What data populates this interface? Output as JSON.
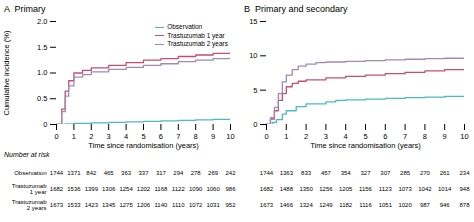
{
  "chart_data": [
    {
      "type": "line",
      "line_style": "step",
      "title": "A  Primary",
      "xlabel": "Time since randomisation (years)",
      "ylabel": "Cumulative incidence (%)",
      "xlim": [
        0,
        10
      ],
      "ylim": [
        0,
        2.0
      ],
      "xticks": [
        0,
        1,
        2,
        3,
        4,
        5,
        6,
        7,
        8,
        9,
        10
      ],
      "yticks": [
        0,
        0.5,
        {
          "value": 1.0,
          "label": "1.0"
        },
        1.5,
        {
          "value": 2.0,
          "label": "2.0"
        }
      ],
      "legend": "upper right",
      "series": [
        {
          "name": "Observation",
          "color": "#4db8c8",
          "x": [
            0,
            0.5,
            1.0,
            2.0,
            3.0,
            4.0,
            5.0,
            6.0,
            7.0,
            8.0,
            9.0,
            10.0
          ],
          "values": [
            0,
            0.01,
            0.02,
            0.03,
            0.04,
            0.05,
            0.06,
            0.07,
            0.08,
            0.09,
            0.1,
            0.11
          ]
        },
        {
          "name": "Trastuzumab 1 year",
          "color": "#c2506e",
          "x": [
            0,
            0.3,
            0.5,
            0.7,
            1.0,
            1.5,
            2.0,
            3.0,
            4.0,
            5.0,
            6.0,
            7.0,
            8.0,
            9.0,
            10.0
          ],
          "values": [
            0,
            0.3,
            0.65,
            0.85,
            1.0,
            1.05,
            1.1,
            1.15,
            1.2,
            1.25,
            1.28,
            1.32,
            1.35,
            1.38,
            1.4
          ]
        },
        {
          "name": "Trastuzumab 2 years",
          "color": "#a08ab4",
          "x": [
            0,
            0.3,
            0.5,
            0.7,
            1.0,
            1.5,
            2.0,
            3.0,
            4.0,
            5.0,
            6.0,
            7.0,
            8.0,
            9.0,
            10.0
          ],
          "values": [
            0,
            0.25,
            0.55,
            0.75,
            0.92,
            0.97,
            1.02,
            1.07,
            1.11,
            1.15,
            1.18,
            1.22,
            1.25,
            1.28,
            1.3
          ]
        }
      ],
      "risk_table": {
        "label": "Number at risk",
        "times": [
          0,
          1,
          2,
          3,
          4,
          5,
          6,
          7,
          8,
          9,
          10
        ],
        "rows": [
          {
            "name": "Observation",
            "values": [
              1744,
              1371,
              842,
              465,
              363,
              337,
              317,
              294,
              278,
              269,
              242
            ]
          },
          {
            "name": "Trastuzumab\n1 year",
            "values": [
              1682,
              1536,
              1399,
              1306,
              1254,
              1202,
              1168,
              1122,
              1090,
              1060,
              986
            ]
          },
          {
            "name": "Trastuzumab\n2 years",
            "values": [
              1673,
              1533,
              1423,
              1345,
              1275,
              1206,
              1140,
              1110,
              1072,
              1031,
              952
            ]
          }
        ]
      }
    },
    {
      "type": "line",
      "line_style": "step",
      "title": "B  Primary and secondary",
      "xlabel": "Time since randomisation (years)",
      "xlim": [
        0,
        10
      ],
      "ylim": [
        0,
        15
      ],
      "xticks": [
        0,
        1,
        2,
        3,
        4,
        5,
        6,
        7,
        8,
        9,
        10
      ],
      "yticks": [
        0,
        5,
        10,
        15
      ],
      "series": [
        {
          "name": "Observation",
          "color": "#4db8c8",
          "x": [
            0,
            0.3,
            0.5,
            0.8,
            1.0,
            1.5,
            2.0,
            3.0,
            3.5,
            4.0,
            5.0,
            6.0,
            7.0,
            8.0,
            9.0,
            10.0
          ],
          "values": [
            0,
            0.3,
            0.7,
            1.5,
            2.0,
            2.6,
            3.0,
            3.3,
            3.5,
            3.6,
            3.7,
            3.8,
            3.9,
            4.0,
            4.1,
            4.2
          ]
        },
        {
          "name": "Trastuzumab 1 year",
          "color": "#c2506e",
          "x": [
            0,
            0.2,
            0.4,
            0.6,
            0.8,
            1.0,
            1.3,
            1.6,
            2.0,
            3.0,
            4.0,
            5.0,
            6.0,
            7.0,
            8.0,
            9.0,
            10.0
          ],
          "values": [
            0,
            0.8,
            2.0,
            3.5,
            4.5,
            5.5,
            6.0,
            6.3,
            6.5,
            6.8,
            7.0,
            7.2,
            7.4,
            7.6,
            7.8,
            8.0,
            8.2
          ]
        },
        {
          "name": "Trastuzumab 2 years",
          "color": "#a08ab4",
          "x": [
            0,
            0.2,
            0.4,
            0.6,
            0.8,
            1.0,
            1.3,
            1.6,
            2.0,
            2.5,
            3.0,
            4.0,
            5.0,
            6.0,
            7.0,
            8.0,
            9.0,
            10.0
          ],
          "values": [
            0,
            1.0,
            2.5,
            4.5,
            6.2,
            7.2,
            8.0,
            8.5,
            8.8,
            9.0,
            9.1,
            9.2,
            9.3,
            9.4,
            9.5,
            9.6,
            9.65,
            9.7
          ]
        }
      ],
      "risk_table": {
        "times": [
          0,
          1,
          2,
          3,
          4,
          5,
          6,
          7,
          8,
          9,
          10
        ],
        "rows": [
          {
            "values": [
              1744,
              1363,
              833,
              457,
              354,
              327,
              307,
              285,
              270,
              261,
              234
            ]
          },
          {
            "values": [
              1682,
              1488,
              1350,
              1256,
              1205,
              1156,
              1123,
              1073,
              1042,
              1014,
              948
            ]
          },
          {
            "values": [
              1673,
              1466,
              1324,
              1249,
              1182,
              1116,
              1051,
              1020,
              987,
              946,
              878
            ]
          }
        ]
      }
    }
  ]
}
